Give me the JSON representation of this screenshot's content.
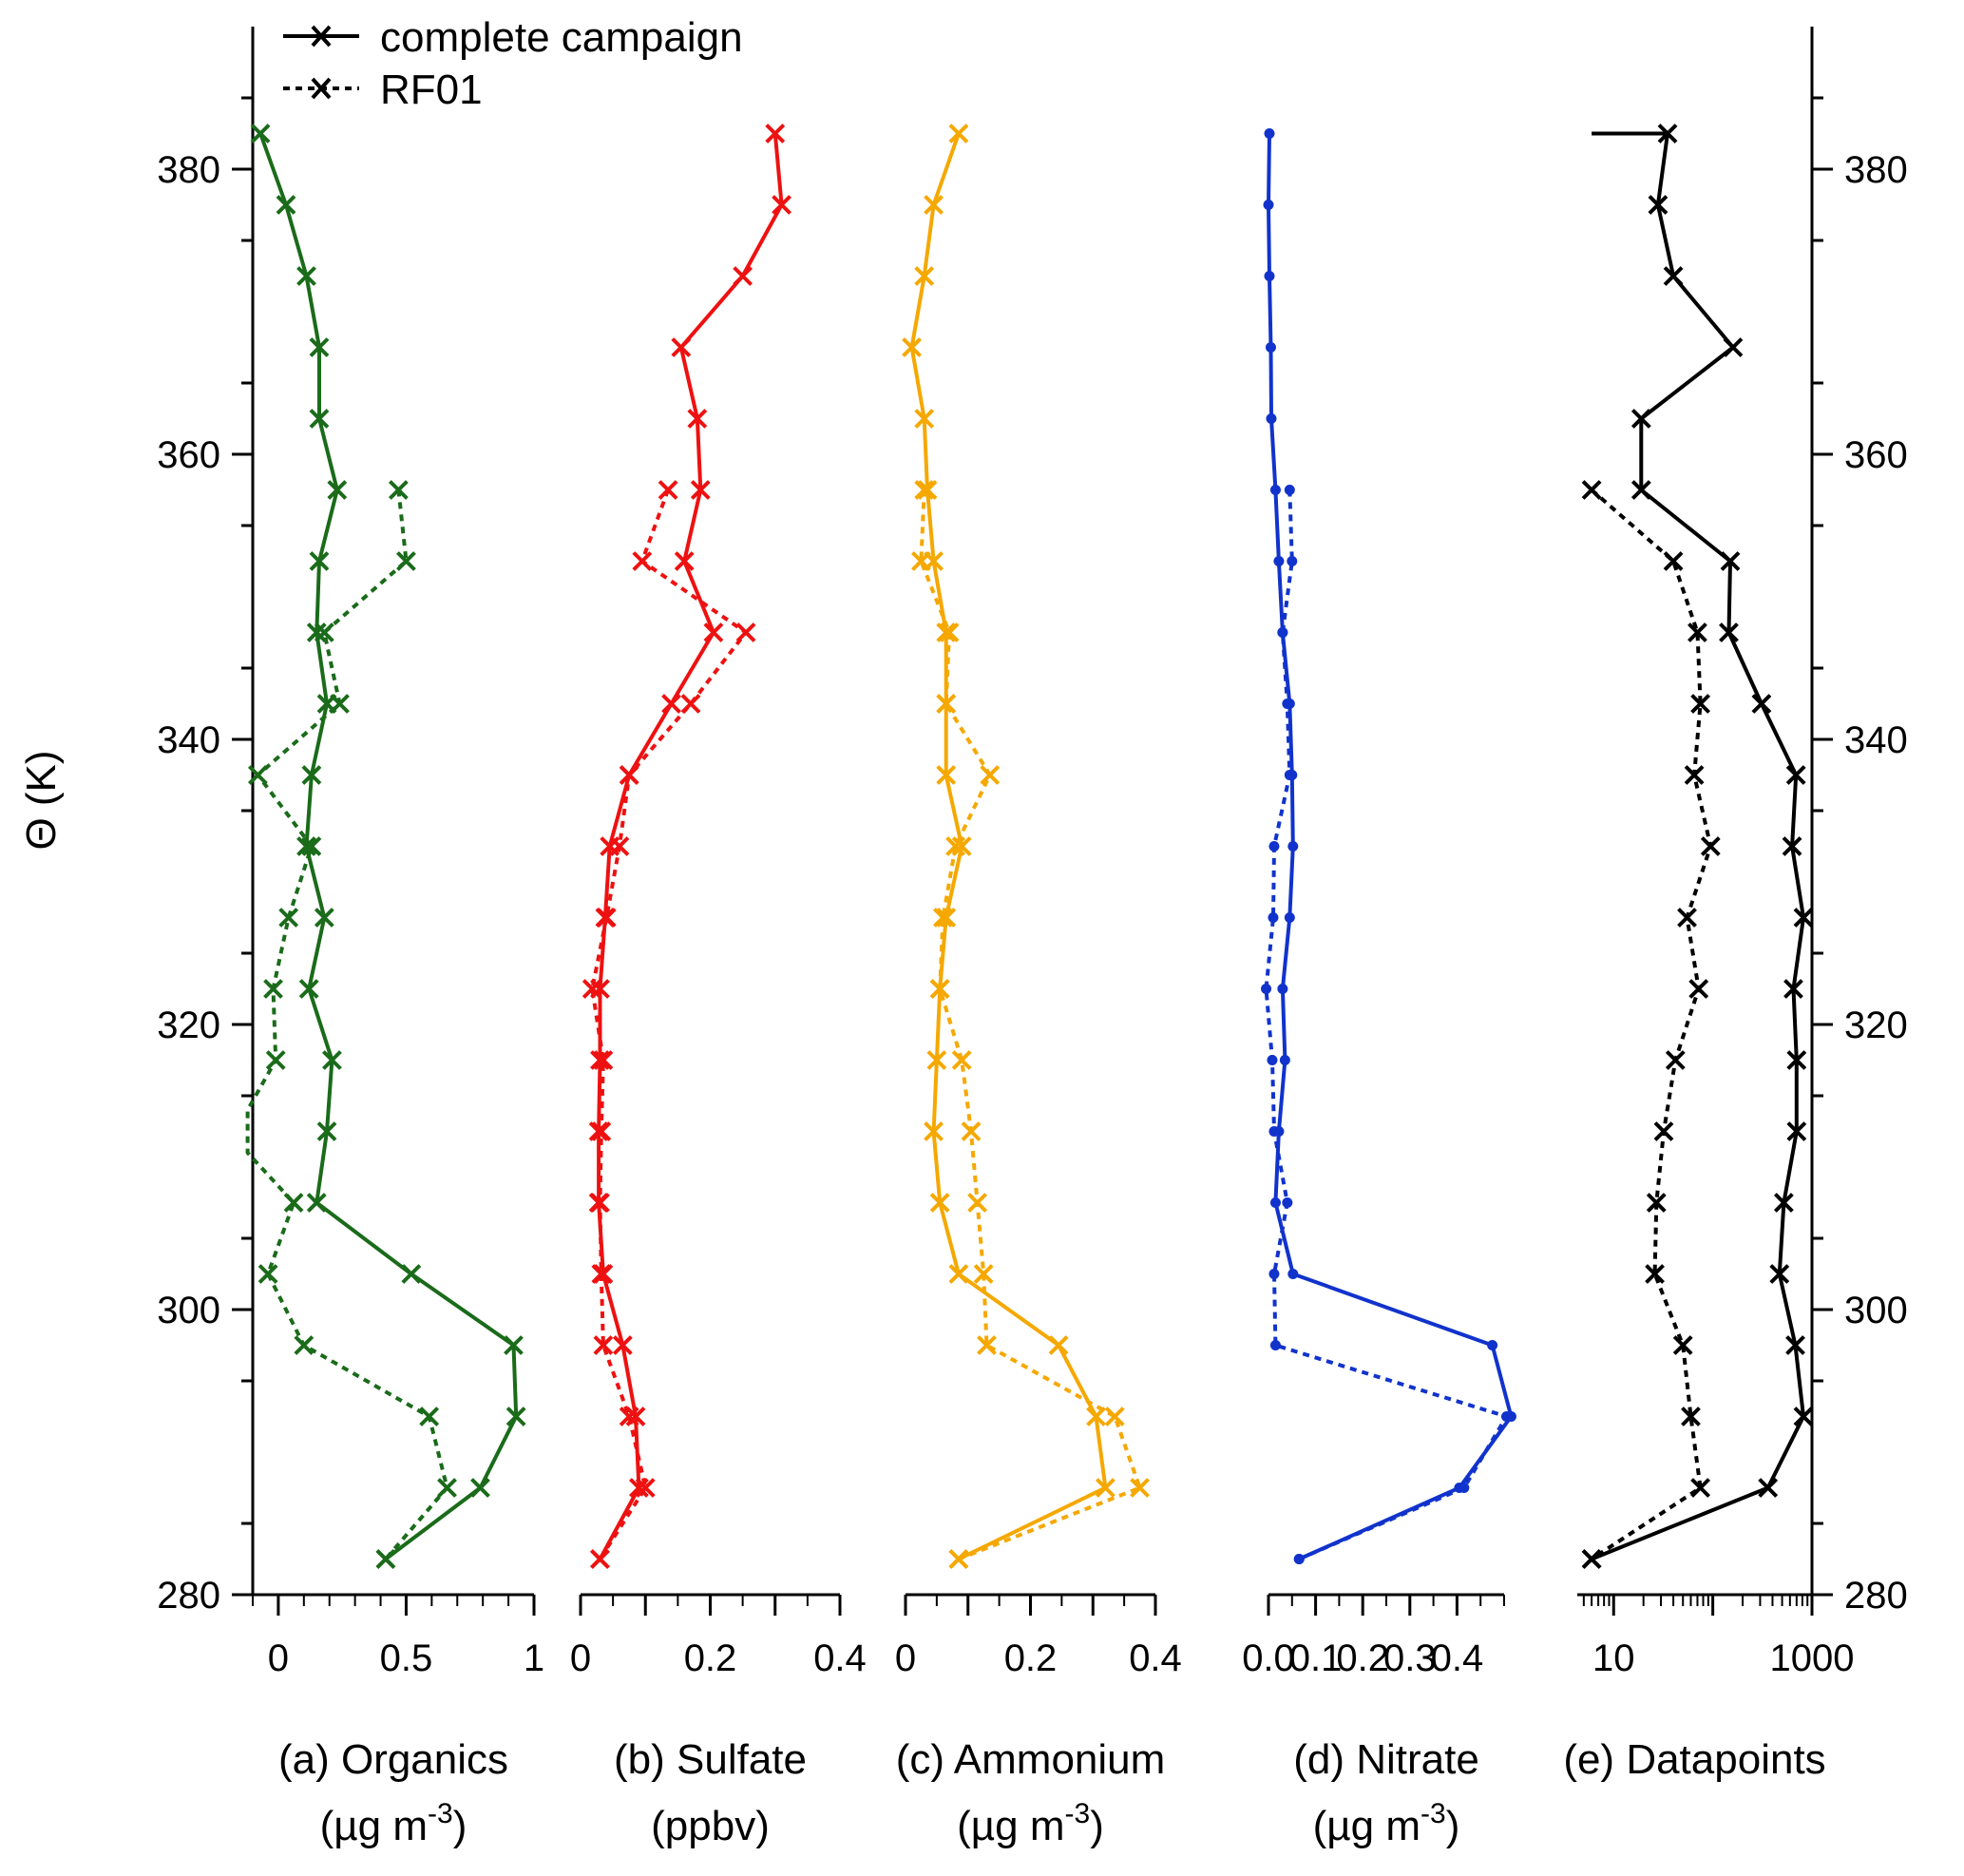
{
  "y_axis": {
    "label": "Θ (K)",
    "range": [
      280,
      390
    ],
    "ticks": [
      280,
      300,
      320,
      340,
      360,
      380
    ]
  },
  "legend": {
    "position": "top-left",
    "entries": [
      {
        "label": "complete campaign",
        "style": "solid"
      },
      {
        "label": "RF01",
        "style": "dotted"
      }
    ]
  },
  "chart_data": [
    {
      "type": "line",
      "panel": "a",
      "xlabel_line1": "(a) Organics",
      "xlabel_unit": "(µg m",
      "xlabel_sup": "-3",
      "xlabel_close": ")",
      "xlim": [
        -0.1,
        1.0
      ],
      "xticks": [
        {
          "v": 0,
          "label": "0"
        },
        {
          "v": 0.5,
          "label": "0.5"
        },
        {
          "v": 1.0,
          "label": "1"
        }
      ],
      "color": "#1a6b1a",
      "marker": "x",
      "series": [
        {
          "name": "complete campaign",
          "style": "solid",
          "x": [
            -0.07,
            0.03,
            0.11,
            0.16,
            0.16,
            0.23,
            0.16,
            0.15,
            0.19,
            0.13,
            0.11,
            0.18,
            0.12,
            0.21,
            0.19,
            0.15,
            0.52,
            0.92,
            0.93,
            0.79,
            0.42
          ],
          "y": [
            382.5,
            377.5,
            372.5,
            367.5,
            362.5,
            357.5,
            352.5,
            347.5,
            342.5,
            337.5,
            332.5,
            327.5,
            322.5,
            317.5,
            312.5,
            307.5,
            302.5,
            297.5,
            292.5,
            287.5,
            282.5
          ]
        },
        {
          "name": "RF01",
          "style": "dotted",
          "x": [
            0.47,
            0.5,
            0.18,
            0.24,
            -0.08,
            0.13,
            0.04,
            -0.02,
            -0.01,
            -0.12,
            -0.12,
            0.06,
            -0.04,
            0.1,
            0.59,
            0.66,
            0.42
          ],
          "y": [
            357.5,
            352.5,
            347.5,
            342.5,
            337.5,
            332.5,
            327.5,
            322.5,
            317.5,
            314.0,
            311.0,
            307.5,
            302.5,
            297.5,
            292.5,
            287.5,
            282.5
          ]
        }
      ]
    },
    {
      "type": "line",
      "panel": "b",
      "xlabel_line1": "(b) Sulfate",
      "xlabel_unit": "(ppbv)",
      "xlabel_sup": "",
      "xlabel_close": "",
      "xlim": [
        0,
        0.4
      ],
      "xticks": [
        {
          "v": 0,
          "label": "0"
        },
        {
          "v": 0.2,
          "label": "0.2"
        },
        {
          "v": 0.4,
          "label": "0.4"
        }
      ],
      "color": "#ee1111",
      "marker": "x",
      "series": [
        {
          "name": "complete campaign",
          "style": "solid",
          "x": [
            0.3,
            0.31,
            0.25,
            0.155,
            0.18,
            0.185,
            0.16,
            0.205,
            0.14,
            0.075,
            0.045,
            0.038,
            0.03,
            0.03,
            0.028,
            0.028,
            0.035,
            0.065,
            0.085,
            0.09,
            0.03
          ],
          "y": [
            382.5,
            377.5,
            372.5,
            367.5,
            362.5,
            357.5,
            352.5,
            347.5,
            342.5,
            337.5,
            332.5,
            327.5,
            322.5,
            317.5,
            312.5,
            307.5,
            302.5,
            297.5,
            292.5,
            287.5,
            282.5
          ]
        },
        {
          "name": "RF01",
          "style": "dotted",
          "x": [
            0.135,
            0.095,
            0.255,
            0.17,
            0.075,
            0.06,
            0.04,
            0.018,
            0.035,
            0.032,
            0.03,
            0.032,
            0.035,
            0.075,
            0.1,
            0.03
          ],
          "y": [
            357.5,
            352.5,
            347.5,
            342.5,
            337.5,
            332.5,
            327.5,
            322.5,
            317.5,
            312.5,
            307.5,
            302.5,
            297.5,
            292.5,
            287.5,
            282.5
          ]
        }
      ]
    },
    {
      "type": "line",
      "panel": "c",
      "xlabel_line1": "(c) Ammonium",
      "xlabel_unit": "(µg m",
      "xlabel_sup": "-3",
      "xlabel_close": ")",
      "xlim": [
        0,
        0.4
      ],
      "xticks": [
        {
          "v": 0,
          "label": "0"
        },
        {
          "v": 0.2,
          "label": "0.2"
        },
        {
          "v": 0.4,
          "label": "0.4"
        }
      ],
      "color": "#f5a800",
      "marker": "x",
      "series": [
        {
          "name": "complete campaign",
          "style": "solid",
          "x": [
            0.085,
            0.045,
            0.03,
            0.01,
            0.03,
            0.035,
            0.045,
            0.065,
            0.065,
            0.065,
            0.09,
            0.065,
            0.055,
            0.05,
            0.045,
            0.055,
            0.085,
            0.245,
            0.305,
            0.32,
            0.085
          ],
          "y": [
            382.5,
            377.5,
            372.5,
            367.5,
            362.5,
            357.5,
            352.5,
            347.5,
            342.5,
            337.5,
            332.5,
            327.5,
            322.5,
            317.5,
            312.5,
            307.5,
            302.5,
            297.5,
            292.5,
            287.5,
            282.5
          ]
        },
        {
          "name": "RF01",
          "style": "dotted",
          "x": [
            0.03,
            0.025,
            0.07,
            0.065,
            0.135,
            0.08,
            0.06,
            0.055,
            0.09,
            0.105,
            0.115,
            0.125,
            0.13,
            0.335,
            0.375,
            0.085
          ],
          "y": [
            357.5,
            352.5,
            347.5,
            342.5,
            337.5,
            332.5,
            327.5,
            322.5,
            317.5,
            312.5,
            307.5,
            302.5,
            297.5,
            292.5,
            287.5,
            282.5
          ]
        }
      ]
    },
    {
      "type": "line",
      "panel": "d",
      "xlabel_line1": "(d) Nitrate",
      "xlabel_unit": "(µg m",
      "xlabel_sup": "-3",
      "xlabel_close": ")",
      "xlim": [
        0,
        0.5
      ],
      "xticks": [
        {
          "v": 0,
          "label": "0.0"
        },
        {
          "v": 0.1,
          "label": "0.1"
        },
        {
          "v": 0.2,
          "label": "0.2"
        },
        {
          "v": 0.3,
          "label": "0.3"
        },
        {
          "v": 0.4,
          "label": "0.4"
        }
      ],
      "color": "#1133cc",
      "marker": "dot",
      "series": [
        {
          "name": "complete campaign",
          "style": "solid",
          "x": [
            0.002,
            0.0,
            0.002,
            0.005,
            0.006,
            0.015,
            0.022,
            0.03,
            0.045,
            0.05,
            0.052,
            0.045,
            0.03,
            0.035,
            0.022,
            0.015,
            0.052,
            0.475,
            0.515,
            0.405,
            0.065
          ],
          "y": [
            382.5,
            377.5,
            372.5,
            367.5,
            362.5,
            357.5,
            352.5,
            347.5,
            342.5,
            337.5,
            332.5,
            327.5,
            322.5,
            317.5,
            312.5,
            307.5,
            302.5,
            297.5,
            292.5,
            287.5,
            282.5
          ]
        },
        {
          "name": "RF01",
          "style": "dotted",
          "x": [
            0.045,
            0.05,
            0.03,
            0.04,
            0.045,
            0.012,
            0.01,
            -0.005,
            0.008,
            0.012,
            0.04,
            0.012,
            0.015,
            0.505,
            0.415,
            0.065
          ],
          "y": [
            357.5,
            352.5,
            347.5,
            342.5,
            337.5,
            332.5,
            327.5,
            322.5,
            317.5,
            312.5,
            307.5,
            302.5,
            297.5,
            292.5,
            287.5,
            282.5
          ]
        }
      ]
    },
    {
      "type": "line",
      "panel": "e",
      "xlabel_line1": "(e) Datapoints",
      "xlabel_unit": "",
      "xlabel_sup": "",
      "xlabel_close": "",
      "xscale": "log",
      "xlim": [
        4.3,
        1000
      ],
      "xticks": [
        {
          "v": 10,
          "label": "10"
        },
        {
          "v": 1000,
          "label": "1000"
        }
      ],
      "color": "#000000",
      "marker": "x",
      "series": [
        {
          "name": "complete campaign",
          "style": "solid",
          "x": [
            6,
            35,
            28,
            40,
            160,
            19,
            19,
            150,
            145,
            310,
            690,
            630,
            820,
            650,
            700,
            700,
            520,
            470,
            680,
            820,
            360,
            6
          ],
          "y": [
            382.5,
            382.5,
            377.5,
            372.5,
            367.5,
            362.5,
            357.5,
            352.5,
            347.5,
            342.5,
            337.5,
            332.5,
            327.5,
            322.5,
            317.5,
            312.5,
            307.5,
            302.5,
            297.5,
            292.5,
            287.5,
            282.5
          ]
        },
        {
          "name": "RF01",
          "style": "dotted",
          "x": [
            6,
            40,
            70,
            75,
            65,
            95,
            55,
            72,
            42,
            32,
            27,
            26,
            50,
            60,
            75,
            6
          ],
          "y": [
            357.5,
            352.5,
            347.5,
            342.5,
            337.5,
            332.5,
            327.5,
            322.5,
            317.5,
            312.5,
            307.5,
            302.5,
            297.5,
            292.5,
            287.5,
            282.5
          ]
        }
      ]
    }
  ]
}
